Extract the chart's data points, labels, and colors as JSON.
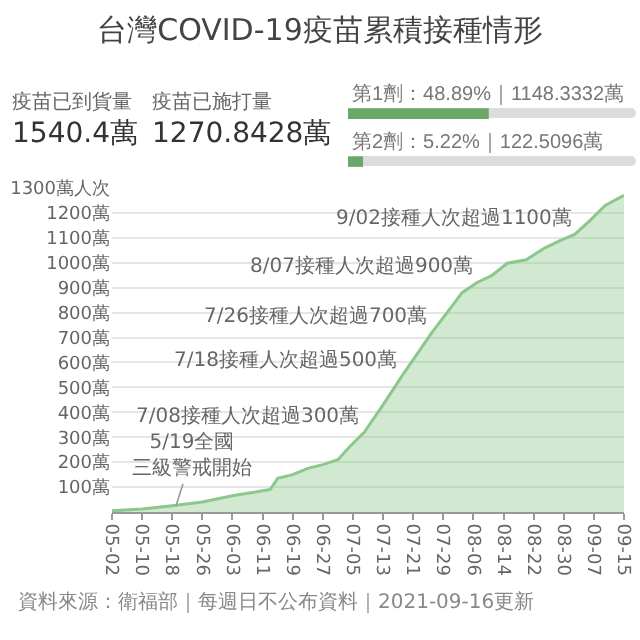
{
  "chart_data": [
    {
      "type": "other",
      "title": "台灣COVID-19疫苗累積接種情形",
      "annotations": [
        "疫苗已到貨量",
        "1540.4萬",
        "疫苗已施打量",
        "1270.8428萬"
      ]
    },
    {
      "type": "bar",
      "orientation": "horizontal",
      "categories": [
        null,
        null
      ],
      "xlim": [
        0,
        100
      ],
      "series": [
        {
          "color": "#6aa86a",
          "values": [
            48.89,
            5.22
          ],
          "value_labels": [
            "第1劑：48.89%｜1148.3332萬",
            "第2劑：5.22%｜122.5096萬"
          ]
        }
      ]
    },
    {
      "type": "area",
      "x": [
        "2021-05-02",
        "2021-05-10",
        "2021-05-18",
        "2021-05-26",
        "2021-06-03",
        "2021-06-07",
        "2021-06-11",
        "2021-06-13",
        "2021-06-15",
        "2021-06-19",
        "2021-06-23",
        "2021-06-27",
        "2021-07-01",
        "2021-07-04",
        "2021-07-08",
        "2021-07-13",
        "2021-07-18",
        "2021-07-26",
        "2021-07-30",
        "2021-08-03",
        "2021-08-07",
        "2021-08-11",
        "2021-08-15",
        "2021-08-20",
        "2021-08-25",
        "2021-08-29",
        "2021-09-02",
        "2021-09-06",
        "2021-09-10",
        "2021-09-15"
      ],
      "series": [
        {
          "color": "#8cc78c",
          "values": [
            5,
            12,
            25,
            40,
            65,
            75,
            85,
            90,
            135,
            150,
            175,
            190,
            210,
            260,
            320,
            430,
            545,
            721,
            800,
            880,
            921,
            950,
            998,
            1012,
            1060,
            1089,
            1115,
            1170,
            1230,
            1271
          ]
        }
      ],
      "xlim": [
        "2021-05-02",
        "2021-09-15"
      ],
      "xticks": [
        {
          "value": "2021-05-02",
          "label": "05-02"
        },
        {
          "value": "2021-05-10",
          "label": "05-10"
        },
        {
          "value": "2021-05-18",
          "label": "05-18"
        },
        {
          "value": "2021-05-26",
          "label": "05-26"
        },
        {
          "value": "2021-06-03",
          "label": "06-03"
        },
        {
          "value": "2021-06-11",
          "label": "06-11"
        },
        {
          "value": "2021-06-19",
          "label": "06-19"
        },
        {
          "value": "2021-06-27",
          "label": "06-27"
        },
        {
          "value": "2021-07-05",
          "label": "07-05"
        },
        {
          "value": "2021-07-13",
          "label": "07-13"
        },
        {
          "value": "2021-07-21",
          "label": "07-21"
        },
        {
          "value": "2021-07-29",
          "label": "07-29"
        },
        {
          "value": "2021-08-06",
          "label": "08-06"
        },
        {
          "value": "2021-08-14",
          "label": "08-14"
        },
        {
          "value": "2021-08-22",
          "label": "08-22"
        },
        {
          "value": "2021-08-30",
          "label": "08-30"
        },
        {
          "value": "2021-09-07",
          "label": "09-07"
        },
        {
          "value": "2021-09-15",
          "label": "09-15"
        }
      ],
      "ylim": [
        0,
        1300
      ],
      "yticks": [
        {
          "value": 100,
          "label": "100萬"
        },
        {
          "value": 200,
          "label": "200萬"
        },
        {
          "value": 300,
          "label": "300萬"
        },
        {
          "value": 400,
          "label": "400萬"
        },
        {
          "value": 500,
          "label": "500萬"
        },
        {
          "value": 600,
          "label": "600萬"
        },
        {
          "value": 700,
          "label": "700萬"
        },
        {
          "value": 800,
          "label": "800萬"
        },
        {
          "value": 900,
          "label": "900萬"
        },
        {
          "value": 1000,
          "label": "1000萬"
        },
        {
          "value": 1100,
          "label": "1100萬"
        },
        {
          "value": 1200,
          "label": "1200萬"
        },
        {
          "value": 1300,
          "label": "1300萬人次"
        }
      ],
      "grid": "y",
      "annotations": [
        {
          "text": "5/19全國三級警戒開始",
          "x": "2021-05-19",
          "y": 25
        },
        {
          "text": "7/08接種人次超過300萬",
          "x": "2021-07-08",
          "y": 320
        },
        {
          "text": "7/18接種人次超過500萬",
          "x": "2021-07-18",
          "y": 545
        },
        {
          "text": "7/26接種人次超過700萬",
          "x": "2021-07-26",
          "y": 721
        },
        {
          "text": "8/07接種人次超過900萬",
          "x": "2021-08-07",
          "y": 921
        },
        {
          "text": "9/02接種人次超過1100萬",
          "x": "2021-09-02",
          "y": 1115
        },
        "資料來源：衛福部｜每週日不公布資料｜2021-09-16更新"
      ]
    }
  ]
}
